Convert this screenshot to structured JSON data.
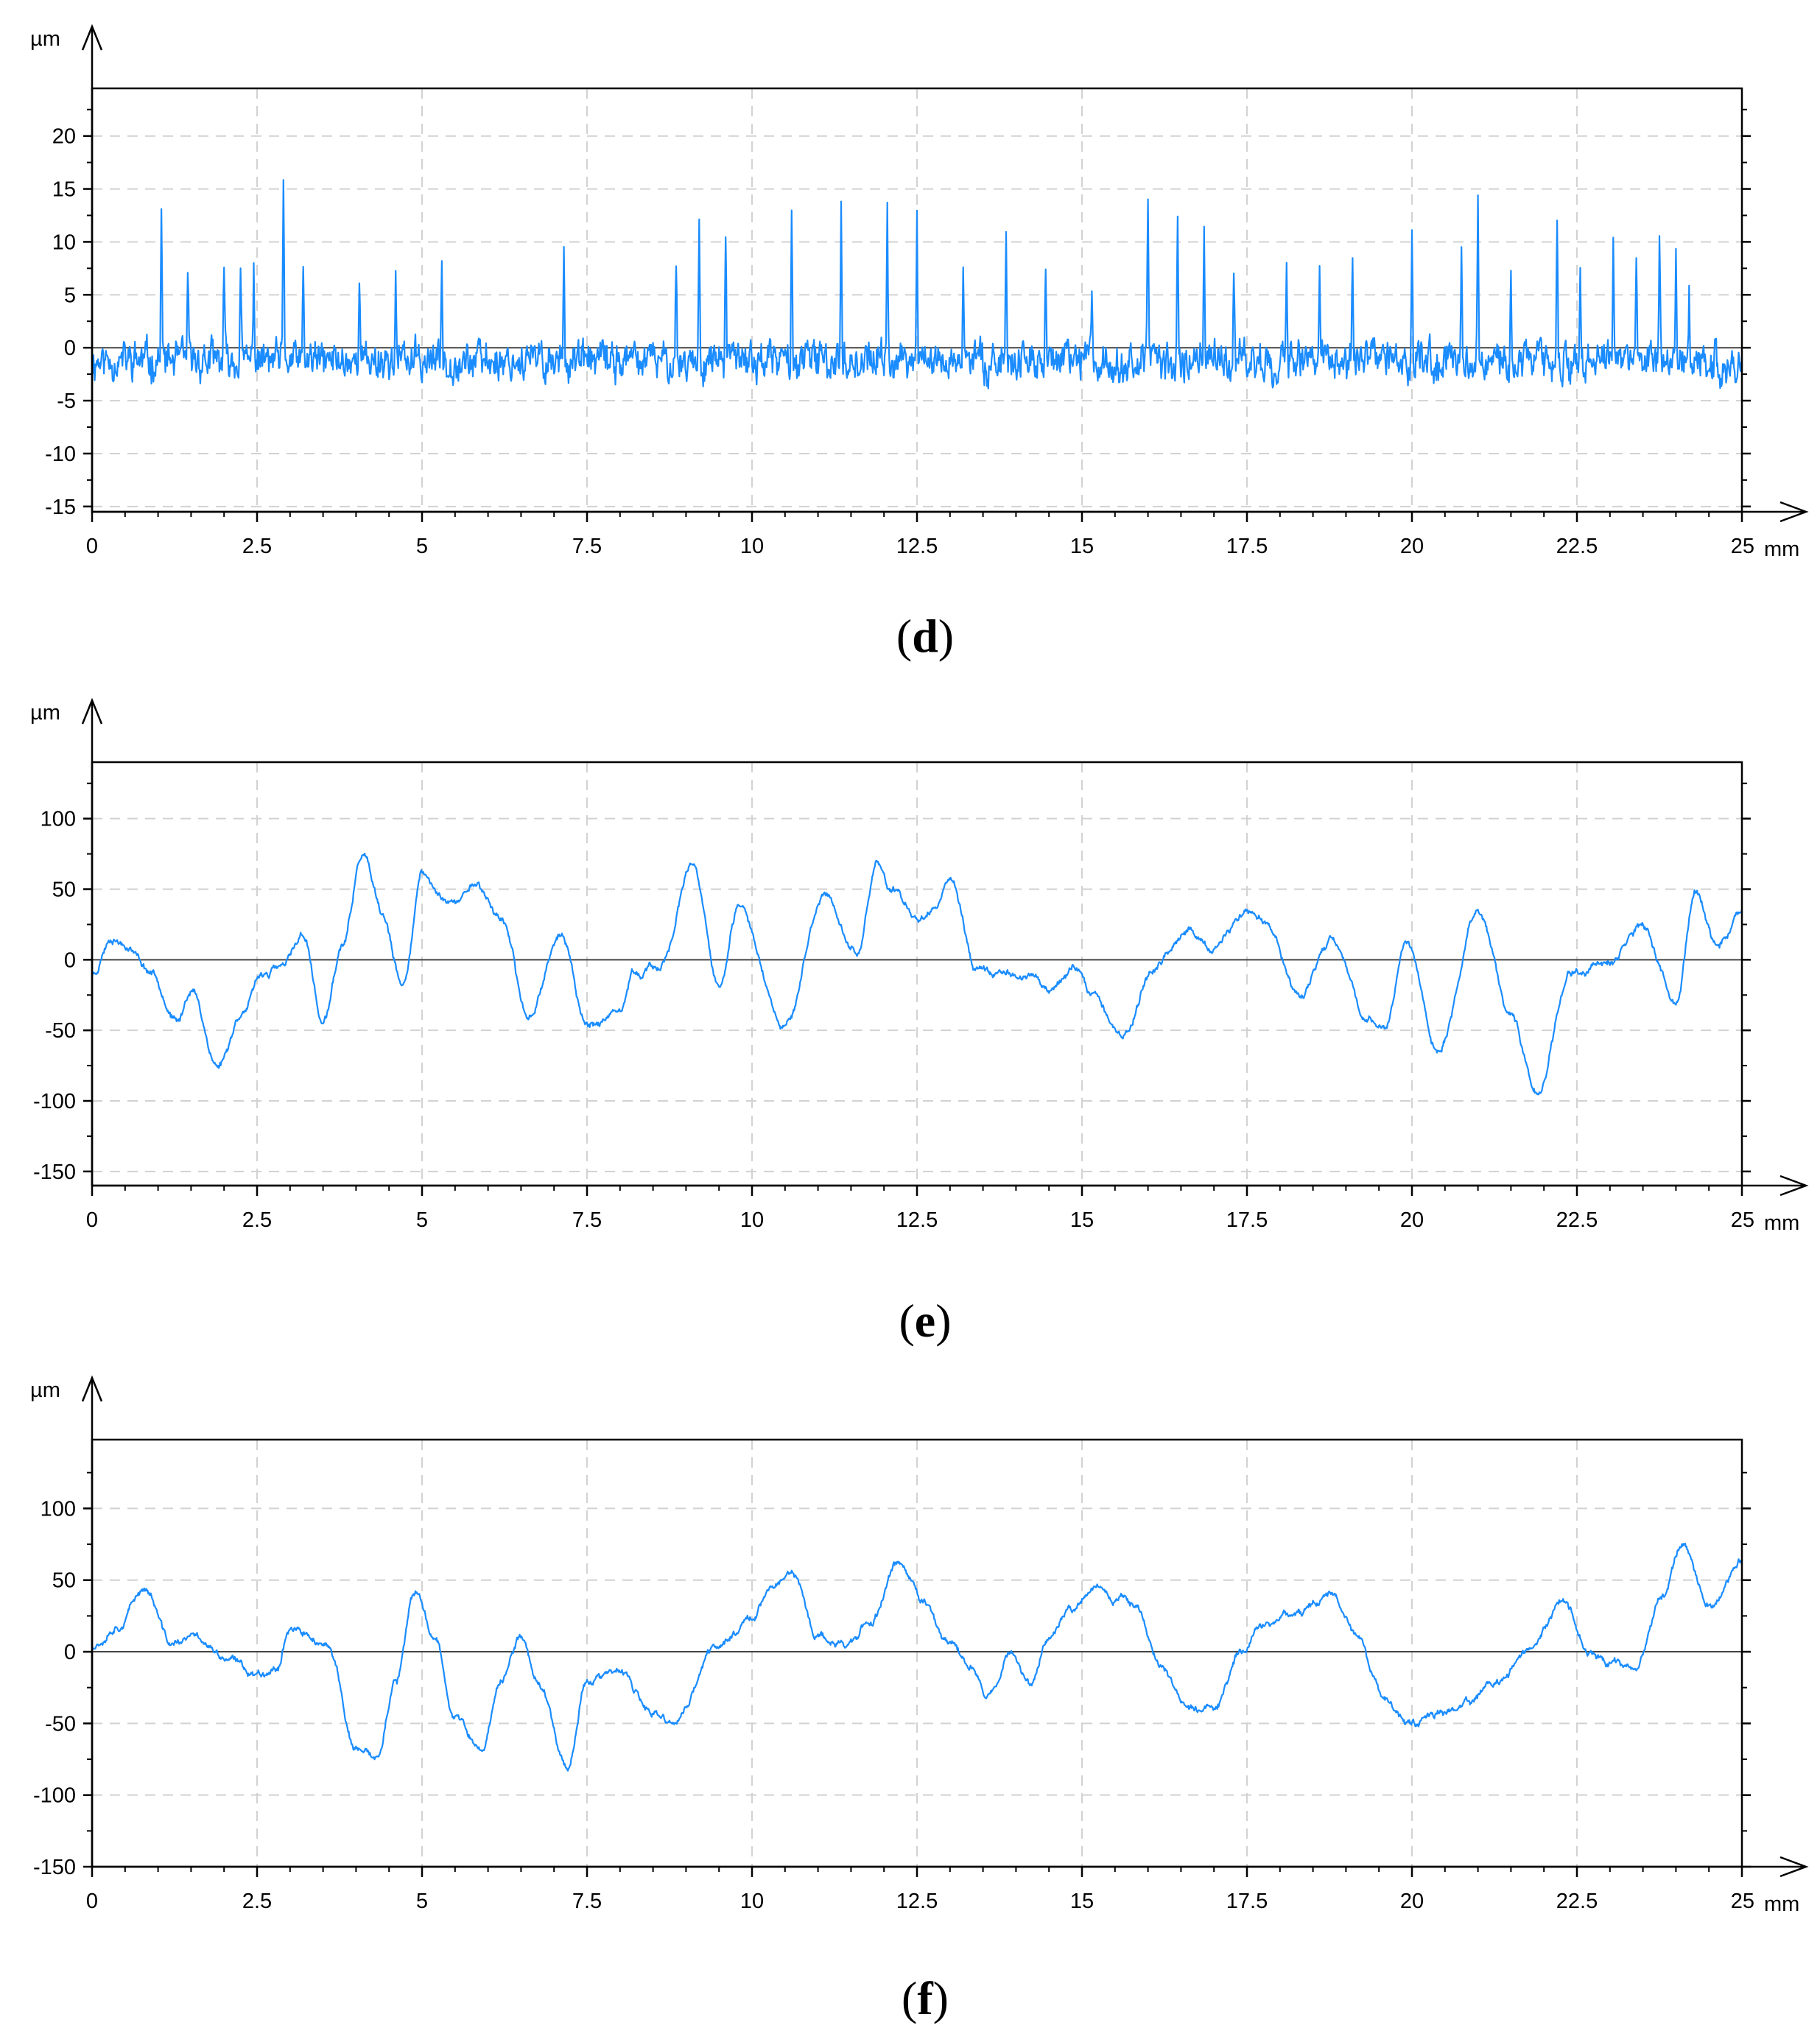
{
  "chart_data": [
    {
      "type": "line",
      "panel_label": "d",
      "xlabel": "mm",
      "ylabel": "µm",
      "xlim": [
        0,
        25
      ],
      "ylim": [
        -15,
        20
      ],
      "x_ticks": [
        0,
        2.5,
        5,
        7.5,
        10,
        12.5,
        15,
        17.5,
        20,
        22.5,
        25
      ],
      "x_tick_labels": [
        "0",
        "2.5",
        "5",
        "7.5",
        "10",
        "12.5",
        "15",
        "17.5",
        "20",
        "22.5",
        "25"
      ],
      "y_ticks": [
        20,
        15,
        10,
        5,
        0,
        -5,
        -10,
        -15
      ],
      "y_tick_labels": [
        "20",
        "15",
        "10",
        "5",
        "0",
        "-5",
        "-10",
        "-15"
      ],
      "grid": true,
      "line_color": "#1a8cff",
      "profile": {
        "base": -1.2,
        "noise": 1.3,
        "seed": 11,
        "peaks": [
          [
            1.05,
            13
          ],
          [
            1.45,
            7
          ],
          [
            2.0,
            7.5
          ],
          [
            2.25,
            7
          ],
          [
            2.45,
            8.5
          ],
          [
            2.9,
            14.8
          ],
          [
            3.2,
            6
          ],
          [
            4.05,
            8
          ],
          [
            4.6,
            6.5
          ],
          [
            5.3,
            8
          ],
          [
            7.15,
            10.5
          ],
          [
            8.85,
            8
          ],
          [
            9.2,
            10.8
          ],
          [
            9.6,
            11.2
          ],
          [
            10.6,
            12.5
          ],
          [
            11.35,
            13.2
          ],
          [
            12.05,
            12
          ],
          [
            12.5,
            12
          ],
          [
            13.2,
            7
          ],
          [
            13.85,
            10.5
          ],
          [
            14.45,
            7
          ],
          [
            15.15,
            7
          ],
          [
            16.0,
            13.8
          ],
          [
            16.45,
            13.5
          ],
          [
            16.85,
            10
          ],
          [
            17.3,
            8
          ],
          [
            18.1,
            8.5
          ],
          [
            18.6,
            9.5
          ],
          [
            19.1,
            7.5
          ],
          [
            20.0,
            11
          ],
          [
            20.75,
            10.7
          ],
          [
            21.0,
            13.2
          ],
          [
            21.5,
            8
          ],
          [
            22.2,
            11.5
          ],
          [
            22.55,
            7
          ],
          [
            23.05,
            8.5
          ],
          [
            23.4,
            10
          ],
          [
            23.75,
            10
          ],
          [
            24.0,
            9.5
          ],
          [
            24.2,
            6
          ]
        ]
      }
    },
    {
      "type": "line",
      "panel_label": "e",
      "xlabel": "mm",
      "ylabel": "µm",
      "xlim": [
        0,
        25
      ],
      "ylim": [
        -150,
        100
      ],
      "x_ticks": [
        0,
        2.5,
        5,
        7.5,
        10,
        12.5,
        15,
        17.5,
        20,
        22.5,
        25
      ],
      "x_tick_labels": [
        "0",
        "2.5",
        "5",
        "7.5",
        "10",
        "12.5",
        "15",
        "17.5",
        "20",
        "22.5",
        "25"
      ],
      "y_ticks": [
        100,
        50,
        0,
        -50,
        -100,
        -150
      ],
      "y_tick_labels": [
        "100",
        "50",
        "0",
        "-50",
        "-100",
        "-150"
      ],
      "grid": true,
      "line_color": "#1a8cff",
      "profile": {
        "noise": 1.5,
        "seed": 23,
        "x": [
          0,
          0.3,
          0.5,
          0.9,
          1.3,
          1.5,
          1.9,
          2.3,
          2.6,
          2.9,
          3.2,
          3.5,
          3.8,
          4.1,
          4.4,
          4.7,
          5.0,
          5.3,
          5.5,
          5.8,
          6.2,
          6.6,
          7.1,
          7.5,
          8.0,
          8.2,
          8.6,
          9.1,
          9.5,
          9.8,
          10.5,
          11.1,
          11.6,
          11.9,
          12.1,
          12.5,
          12.8,
          13.0,
          13.4,
          13.7,
          14.2,
          14.5,
          14.9,
          15.2,
          15.6,
          16.1,
          16.6,
          17.0,
          17.5,
          17.8,
          18.3,
          18.8,
          19.3,
          19.6,
          19.9,
          20.4,
          21.0,
          21.5,
          21.9,
          22.4,
          22.9,
          23.5,
          24.0,
          24.3,
          24.6,
          25.0
        ],
        "y": [
          -10,
          17,
          12,
          -8,
          -45,
          -20,
          -75,
          -35,
          -10,
          -5,
          18,
          -45,
          10,
          75,
          30,
          -20,
          60,
          45,
          40,
          55,
          30,
          -40,
          18,
          -45,
          -40,
          -10,
          -5,
          65,
          -20,
          35,
          -45,
          45,
          5,
          70,
          50,
          30,
          40,
          58,
          -5,
          -10,
          -10,
          -20,
          -5,
          -25,
          -55,
          -5,
          20,
          5,
          35,
          25,
          -25,
          15,
          -40,
          -50,
          15,
          -65,
          35,
          -40,
          -95,
          -10,
          -5,
          25,
          -30,
          48,
          10,
          32
        ]
      }
    },
    {
      "type": "line",
      "panel_label": "f",
      "xlabel": "mm",
      "ylabel": "µm",
      "xlim": [
        0,
        25
      ],
      "ylim": [
        -150,
        100
      ],
      "x_ticks": [
        0,
        2.5,
        5,
        7.5,
        10,
        12.5,
        15,
        17.5,
        20,
        22.5,
        25
      ],
      "x_tick_labels": [
        "0",
        "2.5",
        "5",
        "7.5",
        "10",
        "12.5",
        "15",
        "17.5",
        "20",
        "22.5",
        "25"
      ],
      "y_ticks": [
        100,
        50,
        0,
        -50,
        -100,
        -150
      ],
      "y_tick_labels": [
        "100",
        "50",
        "0",
        "-50",
        "-100",
        "-150"
      ],
      "grid": true,
      "line_color": "#1a8cff",
      "profile": {
        "noise": 1.5,
        "seed": 37,
        "x": [
          0,
          0.4,
          0.8,
          1.2,
          1.6,
          2.0,
          2.5,
          2.8,
          3.0,
          3.3,
          3.6,
          4.0,
          4.3,
          4.6,
          4.9,
          5.2,
          5.5,
          5.9,
          6.2,
          6.5,
          6.8,
          7.2,
          7.5,
          8.0,
          8.5,
          8.8,
          9.5,
          10.0,
          10.3,
          10.6,
          11.0,
          11.4,
          11.8,
          12.2,
          12.6,
          13.0,
          13.3,
          13.6,
          13.9,
          14.2,
          14.5,
          14.8,
          15.2,
          15.5,
          15.8,
          16.2,
          16.6,
          17.0,
          17.4,
          17.8,
          18.3,
          18.8,
          19.2,
          19.6,
          20.0,
          20.5,
          20.9,
          21.3,
          21.8,
          22.3,
          22.7,
          23.0,
          23.4,
          23.8,
          24.1,
          24.5,
          25.0
        ],
        "y": [
          5,
          20,
          45,
          5,
          10,
          -5,
          -15,
          -10,
          18,
          10,
          0,
          -70,
          -75,
          -20,
          40,
          10,
          -45,
          -70,
          -20,
          10,
          -25,
          -80,
          -20,
          -15,
          -45,
          -50,
          5,
          25,
          45,
          55,
          10,
          5,
          20,
          62,
          35,
          5,
          -10,
          -30,
          0,
          -20,
          10,
          30,
          45,
          35,
          35,
          -10,
          -40,
          -40,
          0,
          20,
          30,
          40,
          10,
          -35,
          -50,
          -40,
          -35,
          -20,
          0,
          35,
          0,
          -10,
          -10,
          40,
          75,
          30,
          62
        ]
      }
    }
  ]
}
